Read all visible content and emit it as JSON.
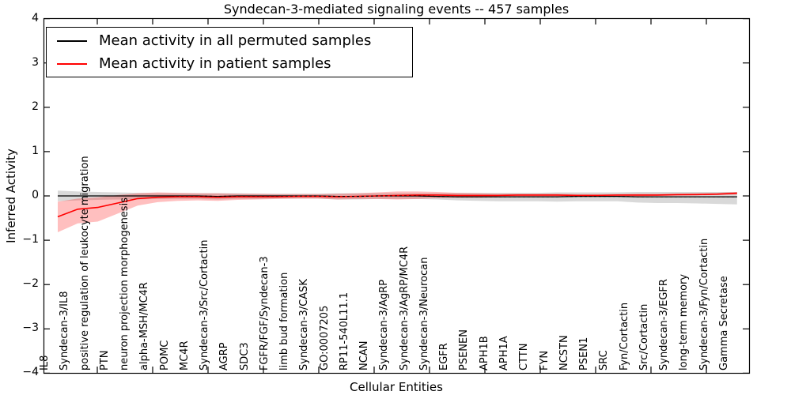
{
  "figure": {
    "title": "Syndecan-3-mediated signaling events -- 457 samples",
    "xlabel": "Cellular Entities",
    "ylabel": "Inferred Activity"
  },
  "legend": {
    "items": [
      {
        "label": "Mean activity in all permuted samples",
        "color": "#000000"
      },
      {
        "label": "Mean activity in patient samples",
        "color": "#ff0000"
      }
    ]
  },
  "chart_data": {
    "type": "line",
    "title": "Syndecan-3-mediated signaling events -- 457 samples",
    "xlabel": "Cellular Entities",
    "ylabel": "Inferred Activity",
    "ylim": [
      -4,
      4
    ],
    "grid": false,
    "legend_position": "upper left",
    "ytick_values": [
      4,
      3,
      2,
      1,
      0,
      -1,
      -2,
      -3,
      -4
    ],
    "ytick_labels": [
      "4",
      "3",
      "2",
      "1",
      "0",
      "−1",
      "−2",
      "−3",
      "−4"
    ],
    "categories": [
      "IL8",
      "Syndecan-3/IL8",
      "positive regulation of leukocyte migration",
      "PTN",
      "neuron projection morphogenesis",
      "alpha-MSH/MC4R",
      "POMC",
      "MC4R",
      "Syndecan-3/Src/Cortactin",
      "AGRP",
      "SDC3",
      "FGFR/FGF/Syndecan-3",
      "limb bud formation",
      "Syndecan-3/CASK",
      "GO:0007205",
      "RP11-540L11.1",
      "NCAN",
      "Syndecan-3/AgRP",
      "Syndecan-3/AgRP/MC4R",
      "Syndecan-3/Neurocan",
      "EGFR",
      "PSENEN",
      "APH1B",
      "APH1A",
      "CTTN",
      "FYN",
      "NCSTN",
      "PSEN1",
      "SRC",
      "Fyn/Cortactin",
      "Src/Cortactin",
      "Syndecan-3/EGFR",
      "long-term memory",
      "Syndecan-3/Fyn/Cortactin",
      "Gamma Secretase"
    ],
    "series": [
      {
        "name": "Mean activity in all permuted samples",
        "color": "#000000",
        "band_color": "rgba(0,0,0,0.15)",
        "values": [
          0.0,
          0.0,
          0.0,
          0.0,
          0.0,
          0.0,
          0.0,
          0.0,
          -0.01,
          0.0,
          0.0,
          0.0,
          0.0,
          0.0,
          -0.01,
          -0.01,
          0.0,
          0.0,
          0.0,
          -0.01,
          -0.02,
          -0.02,
          -0.02,
          -0.02,
          -0.02,
          -0.02,
          -0.01,
          -0.01,
          -0.01,
          -0.02,
          -0.02,
          -0.02,
          -0.02,
          -0.02,
          -0.02
        ],
        "band_upper": [
          0.12,
          0.1,
          0.09,
          0.08,
          0.07,
          0.06,
          0.06,
          0.06,
          0.06,
          0.06,
          0.05,
          0.05,
          0.05,
          0.05,
          0.06,
          0.06,
          0.06,
          0.06,
          0.06,
          0.06,
          0.07,
          0.07,
          0.07,
          0.07,
          0.07,
          0.08,
          0.08,
          0.08,
          0.08,
          0.09,
          0.09,
          0.09,
          0.09,
          0.09,
          0.09
        ],
        "band_lower": [
          -0.12,
          -0.1,
          -0.09,
          -0.08,
          -0.08,
          -0.07,
          -0.07,
          -0.07,
          -0.08,
          -0.07,
          -0.07,
          -0.06,
          -0.06,
          -0.06,
          -0.08,
          -0.08,
          -0.07,
          -0.07,
          -0.07,
          -0.08,
          -0.1,
          -0.11,
          -0.12,
          -0.12,
          -0.12,
          -0.13,
          -0.12,
          -0.12,
          -0.12,
          -0.15,
          -0.16,
          -0.16,
          -0.17,
          -0.18,
          -0.19
        ]
      },
      {
        "name": "Mean activity in patient samples",
        "color": "#ff0000",
        "band_color": "rgba(255,0,0,0.25)",
        "values": [
          -0.47,
          -0.3,
          -0.26,
          -0.16,
          -0.06,
          -0.03,
          -0.02,
          -0.02,
          -0.03,
          -0.02,
          -0.02,
          -0.02,
          -0.01,
          -0.01,
          -0.02,
          -0.01,
          0.0,
          0.01,
          0.02,
          0.02,
          0.01,
          0.01,
          0.01,
          0.02,
          0.02,
          0.02,
          0.01,
          0.01,
          0.02,
          0.02,
          0.02,
          0.03,
          0.03,
          0.04,
          0.06
        ],
        "band_upper": [
          -0.13,
          -0.06,
          -0.03,
          0.02,
          0.06,
          0.08,
          0.07,
          0.06,
          0.06,
          0.05,
          0.05,
          0.04,
          0.04,
          0.04,
          0.05,
          0.06,
          0.08,
          0.1,
          0.1,
          0.09,
          0.07,
          0.06,
          0.05,
          0.05,
          0.05,
          0.05,
          0.04,
          0.04,
          0.04,
          0.05,
          0.05,
          0.05,
          0.06,
          0.07,
          0.09
        ],
        "band_lower": [
          -0.82,
          -0.62,
          -0.58,
          -0.4,
          -0.22,
          -0.14,
          -0.11,
          -0.1,
          -0.11,
          -0.09,
          -0.08,
          -0.07,
          -0.06,
          -0.06,
          -0.08,
          -0.07,
          -0.07,
          -0.08,
          -0.07,
          -0.05,
          -0.04,
          -0.04,
          -0.03,
          -0.02,
          -0.02,
          -0.02,
          -0.02,
          -0.01,
          -0.01,
          -0.01,
          0.0,
          0.0,
          0.01,
          0.02,
          0.03
        ]
      }
    ]
  }
}
